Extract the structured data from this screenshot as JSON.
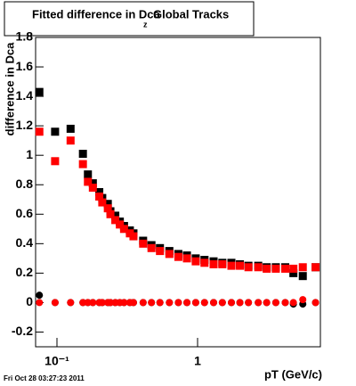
{
  "chart_data": {
    "type": "scatter",
    "title": [
      "Fitted difference in Dca",
      "z",
      "Global Tracks"
    ],
    "y_label": "difference in Dca",
    "x_label": "pT (GeV/c)",
    "footer": "Fri Oct 28 03:27:23 2011",
    "log_x": true,
    "x": [
      0.075,
      0.097,
      0.125,
      0.153,
      0.166,
      0.18,
      0.2,
      0.21,
      0.23,
      0.24,
      0.26,
      0.28,
      0.3,
      0.33,
      0.35,
      0.41,
      0.47,
      0.54,
      0.63,
      0.73,
      0.84,
      0.97,
      1.12,
      1.3,
      1.5,
      1.74,
      2.0,
      2.3,
      2.7,
      3.1,
      3.6,
      4.2,
      4.8,
      5.6,
      6.9
    ],
    "series": [
      {
        "color": "#000000",
        "marker": "square",
        "values": [
          1.43,
          1.16,
          1.18,
          1.01,
          0.87,
          0.81,
          0.75,
          0.71,
          0.67,
          0.62,
          0.59,
          0.55,
          0.52,
          0.49,
          0.47,
          0.42,
          0.39,
          0.37,
          0.35,
          0.33,
          0.32,
          0.3,
          0.29,
          0.28,
          0.27,
          0.27,
          0.26,
          0.25,
          0.25,
          0.24,
          0.24,
          0.24,
          0.2,
          0.18,
          0.24
        ]
      },
      {
        "color": "#ff0000",
        "marker": "square",
        "values": [
          1.16,
          0.96,
          1.1,
          0.94,
          0.82,
          0.78,
          0.72,
          0.68,
          0.64,
          0.6,
          0.56,
          0.53,
          0.5,
          0.47,
          0.45,
          0.4,
          0.37,
          0.35,
          0.33,
          0.31,
          0.3,
          0.28,
          0.27,
          0.26,
          0.26,
          0.25,
          0.25,
          0.24,
          0.24,
          0.23,
          0.23,
          0.23,
          0.23,
          0.24,
          0.24
        ]
      },
      {
        "color": "#000000",
        "marker": "circle",
        "values": [
          0.05,
          0,
          0,
          0,
          0,
          0,
          0,
          0,
          0,
          0,
          0,
          0,
          0,
          0,
          0,
          0,
          0,
          0,
          0,
          0,
          0,
          0,
          0,
          0,
          0,
          0,
          0,
          0,
          0,
          0,
          0,
          0,
          -0.01,
          -0.01,
          0
        ]
      },
      {
        "color": "#ff0000",
        "marker": "circle",
        "values": [
          0,
          0,
          0,
          0,
          0,
          0,
          0,
          0,
          0,
          0,
          0,
          0,
          0,
          0,
          0,
          0,
          0,
          0,
          0,
          0,
          0,
          0,
          0,
          0,
          0,
          0,
          0,
          0,
          0,
          0,
          0,
          0,
          0,
          0.02,
          0
        ]
      }
    ],
    "xlim": [
      0.0705,
      7.47
    ],
    "ylim": [
      -0.3,
      1.8
    ],
    "xticks": [
      {
        "value": 0.1,
        "label": "10⁻¹"
      },
      1
    ],
    "yticks": [
      -0.2,
      0,
      0.2,
      0.4,
      0.6,
      0.8,
      1,
      1.2,
      1.4,
      1.6,
      1.8
    ]
  }
}
